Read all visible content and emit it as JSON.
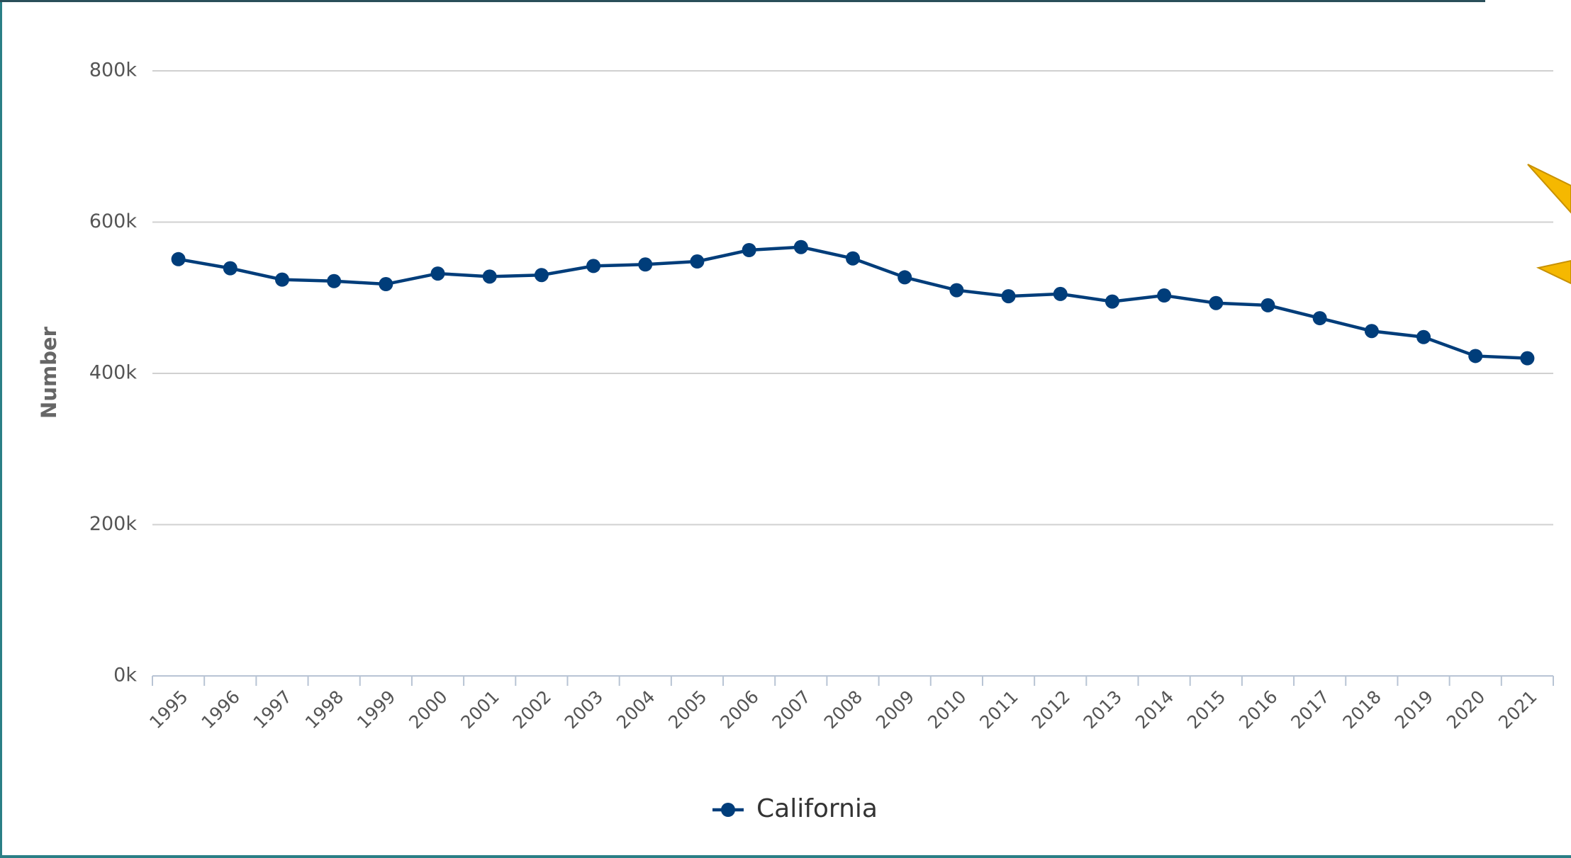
{
  "chart_data": {
    "type": "line",
    "y_label": "Number",
    "categories": [
      "1995",
      "1996",
      "1997",
      "1998",
      "1999",
      "2000",
      "2001",
      "2002",
      "2003",
      "2004",
      "2005",
      "2006",
      "2007",
      "2008",
      "2009",
      "2010",
      "2011",
      "2012",
      "2013",
      "2014",
      "2015",
      "2016",
      "2017",
      "2018",
      "2019",
      "2020",
      "2021"
    ],
    "series": [
      {
        "name": "California",
        "color": "#003d7a",
        "values": [
          551000,
          539000,
          524000,
          522000,
          518000,
          532000,
          528000,
          530000,
          542000,
          544000,
          548000,
          563000,
          567000,
          552000,
          527000,
          510000,
          502000,
          505000,
          495000,
          503000,
          493000,
          490000,
          473000,
          456000,
          448000,
          423000,
          420000
        ]
      }
    ],
    "ylim": [
      0,
      800000
    ],
    "yticks": [
      {
        "value": 0,
        "label": "0k"
      },
      {
        "value": 200000,
        "label": "200k"
      },
      {
        "value": 400000,
        "label": "400k"
      },
      {
        "value": 600000,
        "label": "600k"
      },
      {
        "value": 800000,
        "label": "800k"
      }
    ],
    "grid": true,
    "legend": "bottom"
  }
}
